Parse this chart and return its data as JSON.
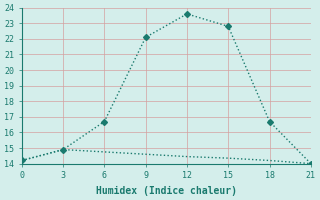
{
  "xlabel": "Humidex (Indice chaleur)",
  "line1_x": [
    0,
    3,
    6,
    9,
    12,
    15,
    18,
    21
  ],
  "line1_y": [
    14.2,
    14.9,
    16.7,
    22.1,
    23.6,
    22.8,
    16.7,
    14.0
  ],
  "line2_x": [
    0,
    3,
    6,
    9,
    12,
    15,
    18,
    21
  ],
  "line2_y": [
    14.2,
    14.9,
    14.75,
    14.6,
    14.45,
    14.35,
    14.2,
    14.0
  ],
  "line_color": "#1a7a6e",
  "bg_color": "#d4eeeb",
  "grid_color_major": "#c8dedd",
  "grid_color_minor": "#e0c8c8",
  "xlim": [
    0,
    21
  ],
  "ylim": [
    14,
    24
  ],
  "xticks": [
    0,
    3,
    6,
    9,
    12,
    15,
    18,
    21
  ],
  "yticks": [
    14,
    15,
    16,
    17,
    18,
    19,
    20,
    21,
    22,
    23,
    24
  ],
  "marker": "D",
  "markersize": 3,
  "linewidth": 1.0,
  "xlabel_fontsize": 7,
  "tick_fontsize": 6
}
